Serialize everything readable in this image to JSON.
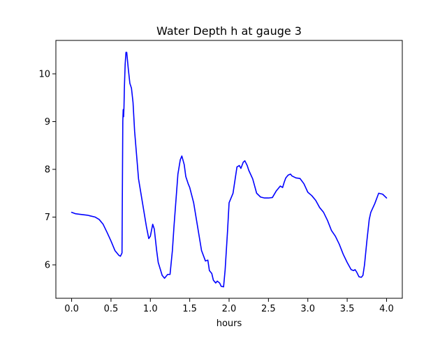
{
  "chart_data": {
    "type": "line",
    "title": "Water Depth h at gauge 3",
    "xlabel": "hours",
    "ylabel": "",
    "xlim": [
      -0.2,
      4.2
    ],
    "ylim": [
      5.3,
      10.7
    ],
    "xticks": [
      0.0,
      0.5,
      1.0,
      1.5,
      2.0,
      2.5,
      3.0,
      3.5,
      4.0
    ],
    "xtick_labels": [
      "0.0",
      "0.5",
      "1.0",
      "1.5",
      "2.0",
      "2.5",
      "3.0",
      "3.5",
      "4.0"
    ],
    "yticks": [
      6,
      7,
      8,
      9,
      10
    ],
    "ytick_labels": [
      "6",
      "7",
      "8",
      "9",
      "10"
    ],
    "grid": false,
    "legend": "none",
    "series": [
      {
        "color": "#0000ff",
        "x": [
          0.0,
          0.05,
          0.1,
          0.2,
          0.3,
          0.35,
          0.4,
          0.45,
          0.5,
          0.55,
          0.6,
          0.62,
          0.64,
          0.65,
          0.655,
          0.66,
          0.665,
          0.67,
          0.68,
          0.69,
          0.7,
          0.72,
          0.74,
          0.76,
          0.78,
          0.8,
          0.85,
          0.9,
          0.95,
          0.98,
          1.0,
          1.03,
          1.05,
          1.08,
          1.1,
          1.15,
          1.18,
          1.2,
          1.22,
          1.25,
          1.28,
          1.3,
          1.35,
          1.38,
          1.4,
          1.43,
          1.45,
          1.48,
          1.5,
          1.55,
          1.6,
          1.65,
          1.7,
          1.73,
          1.75,
          1.78,
          1.8,
          1.83,
          1.85,
          1.88,
          1.9,
          1.93,
          1.95,
          1.98,
          2.0,
          2.05,
          2.1,
          2.13,
          2.15,
          2.18,
          2.2,
          2.23,
          2.25,
          2.3,
          2.35,
          2.4,
          2.45,
          2.5,
          2.55,
          2.6,
          2.65,
          2.68,
          2.7,
          2.72,
          2.75,
          2.78,
          2.8,
          2.85,
          2.9,
          2.95,
          3.0,
          3.05,
          3.1,
          3.15,
          3.2,
          3.25,
          3.3,
          3.35,
          3.4,
          3.45,
          3.5,
          3.55,
          3.58,
          3.6,
          3.62,
          3.65,
          3.68,
          3.7,
          3.72,
          3.75,
          3.78,
          3.8,
          3.85,
          3.9,
          3.95,
          4.0
        ],
        "y": [
          7.1,
          7.07,
          7.06,
          7.04,
          7.0,
          6.95,
          6.85,
          6.68,
          6.5,
          6.3,
          6.2,
          6.18,
          6.25,
          9.0,
          9.25,
          9.1,
          9.3,
          9.7,
          10.2,
          10.45,
          10.45,
          10.1,
          9.8,
          9.7,
          9.4,
          8.8,
          7.8,
          7.3,
          6.8,
          6.55,
          6.6,
          6.85,
          6.75,
          6.3,
          6.05,
          5.78,
          5.72,
          5.76,
          5.8,
          5.8,
          6.3,
          6.8,
          7.9,
          8.2,
          8.28,
          8.1,
          7.85,
          7.7,
          7.62,
          7.3,
          6.8,
          6.3,
          6.08,
          6.1,
          5.88,
          5.82,
          5.68,
          5.62,
          5.66,
          5.62,
          5.55,
          5.54,
          5.9,
          6.7,
          7.3,
          7.5,
          8.05,
          8.08,
          8.02,
          8.15,
          8.18,
          8.08,
          7.98,
          7.8,
          7.5,
          7.42,
          7.4,
          7.4,
          7.41,
          7.55,
          7.65,
          7.62,
          7.73,
          7.82,
          7.88,
          7.9,
          7.86,
          7.82,
          7.81,
          7.7,
          7.52,
          7.45,
          7.35,
          7.2,
          7.1,
          6.93,
          6.72,
          6.6,
          6.43,
          6.22,
          6.05,
          5.9,
          5.88,
          5.9,
          5.85,
          5.75,
          5.74,
          5.78,
          6.0,
          6.5,
          6.95,
          7.1,
          7.28,
          7.5,
          7.48,
          7.4
        ]
      }
    ]
  }
}
